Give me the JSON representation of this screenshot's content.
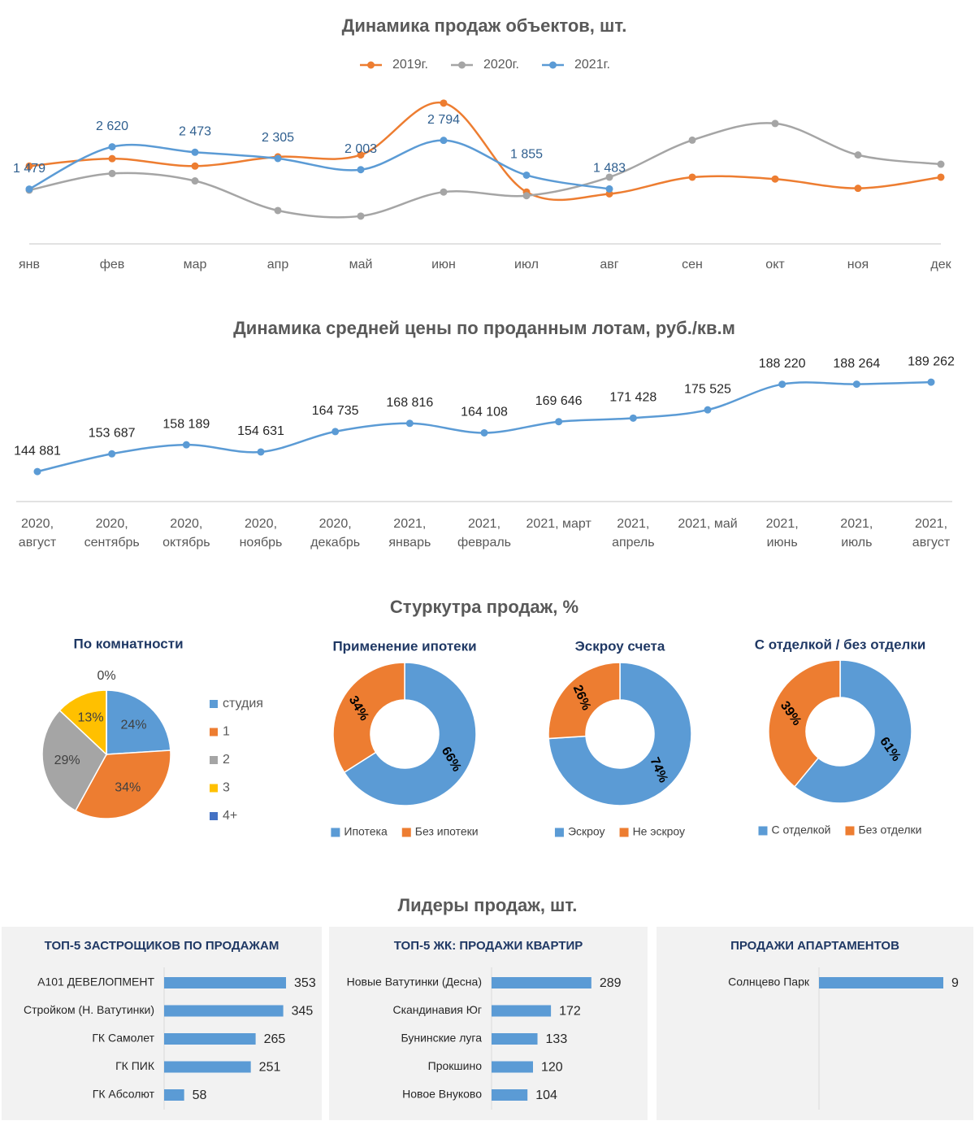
{
  "headings": [
    "Стуркутра продаж, %",
    "Лидеры продаж, шт."
  ],
  "chart_data": [
    {
      "type": "line",
      "title": "Динамика продаж объектов, шт.",
      "categories": [
        "янв",
        "фев",
        "мар",
        "апр",
        "май",
        "июн",
        "июл",
        "авг",
        "сен",
        "окт",
        "ноя",
        "дек"
      ],
      "ylim": [
        0,
        4000
      ],
      "legend": "top",
      "series": [
        {
          "name": "2019г.",
          "color": "#ed7d31",
          "values": [
            2100,
            2300,
            2100,
            2350,
            2400,
            3800,
            1400,
            1350,
            1800,
            1750,
            1500,
            1800
          ]
        },
        {
          "name": "2020г.",
          "color": "#a5a5a5",
          "values": [
            1450,
            1900,
            1700,
            900,
            750,
            1400,
            1300,
            1800,
            2800,
            3250,
            2400,
            2150
          ]
        },
        {
          "name": "2021г.",
          "color": "#5b9bd5",
          "values": [
            1479,
            2620,
            2473,
            2305,
            2003,
            2794,
            1855,
            1483,
            null,
            null,
            null,
            null
          ],
          "value_labels": [
            "1 479",
            "2 620",
            "2 473",
            "2 305",
            "2 003",
            "2 794",
            "1 855",
            "1 483",
            null,
            null,
            null,
            null
          ]
        }
      ]
    },
    {
      "type": "line",
      "title": "Динамика средней цены по проданным лотам, руб./кв.м",
      "categories": [
        "2020,\nавгуст",
        "2020,\nсентябрь",
        "2020,\nоктябрь",
        "2020,\nноябрь",
        "2020,\nдекабрь",
        "2021,\nянварь",
        "2021,\nфевраль",
        "2021, март",
        "2021,\nапрель",
        "2021, май",
        "2021,\nиюнь",
        "2021,\nиюль",
        "2021,\nавгуст"
      ],
      "values": [
        144881,
        153687,
        158189,
        154631,
        164735,
        168816,
        164108,
        169646,
        171428,
        175525,
        188220,
        188264,
        189262
      ],
      "value_labels": [
        "144 881",
        "153 687",
        "158 189",
        "154 631",
        "164 735",
        "168 816",
        "164 108",
        "169 646",
        "171 428",
        "175 525",
        "188 220",
        "188 264",
        "189 262"
      ],
      "color": "#5b9bd5",
      "ylim": [
        130000,
        200000
      ]
    },
    {
      "type": "pie",
      "title": "По комнатности",
      "categories": [
        "студия",
        "1",
        "2",
        "3",
        "4+"
      ],
      "values": [
        24,
        34,
        29,
        13,
        0
      ],
      "value_labels": [
        "24%",
        "34%",
        "29%",
        "13%",
        "0%"
      ],
      "colors": [
        "#5b9bd5",
        "#ed7d31",
        "#a5a5a5",
        "#ffc000",
        "#4472c4"
      ],
      "legend": "right"
    },
    {
      "type": "donut",
      "title": "Применение ипотеки",
      "categories": [
        "Ипотека",
        "Без ипотеки"
      ],
      "values": [
        66,
        34
      ],
      "value_labels": [
        "66%",
        "34%"
      ],
      "colors": [
        "#5b9bd5",
        "#ed7d31"
      ],
      "legend": "bottom"
    },
    {
      "type": "donut",
      "title": "Эскроу счета",
      "categories": [
        "Эскроу",
        "Не эскроу"
      ],
      "values": [
        74,
        26
      ],
      "value_labels": [
        "74%",
        "26%"
      ],
      "colors": [
        "#5b9bd5",
        "#ed7d31"
      ],
      "legend": "bottom"
    },
    {
      "type": "donut",
      "title": "С отделкой / без отделки",
      "categories": [
        "С отделкой",
        "Без отделки"
      ],
      "values": [
        61,
        39
      ],
      "value_labels": [
        "61%",
        "39%"
      ],
      "colors": [
        "#5b9bd5",
        "#ed7d31"
      ],
      "legend": "bottom"
    },
    {
      "type": "bar",
      "orientation": "horizontal",
      "title": "ТОП-5 ЗАСТРОЩИКОВ ПО ПРОДАЖАМ",
      "categories": [
        "А101 ДЕВЕЛОПМЕНТ",
        "Стройком (Н. Ватутинки)",
        "ГК Самолет",
        "ГК ПИК",
        "ГК Абсолют"
      ],
      "values": [
        353,
        345,
        265,
        251,
        58
      ],
      "color": "#5b9bd5",
      "xlim": [
        0,
        400
      ]
    },
    {
      "type": "bar",
      "orientation": "horizontal",
      "title": "ТОП-5 ЖК: ПРОДАЖИ КВАРТИР",
      "categories": [
        "Новые Ватутинки (Десна)",
        "Скандинавия Юг",
        "Бунинские луга",
        "Прокшино",
        "Новое Внуково"
      ],
      "values": [
        289,
        172,
        133,
        120,
        104
      ],
      "color": "#5b9bd5",
      "xlim": [
        0,
        400
      ]
    },
    {
      "type": "bar",
      "orientation": "horizontal",
      "title": "ПРОДАЖИ АПАРТАМЕНТОВ",
      "categories": [
        "Солнцево Парк"
      ],
      "values": [
        9
      ],
      "color": "#5b9bd5",
      "xlim": [
        0,
        10
      ]
    }
  ]
}
